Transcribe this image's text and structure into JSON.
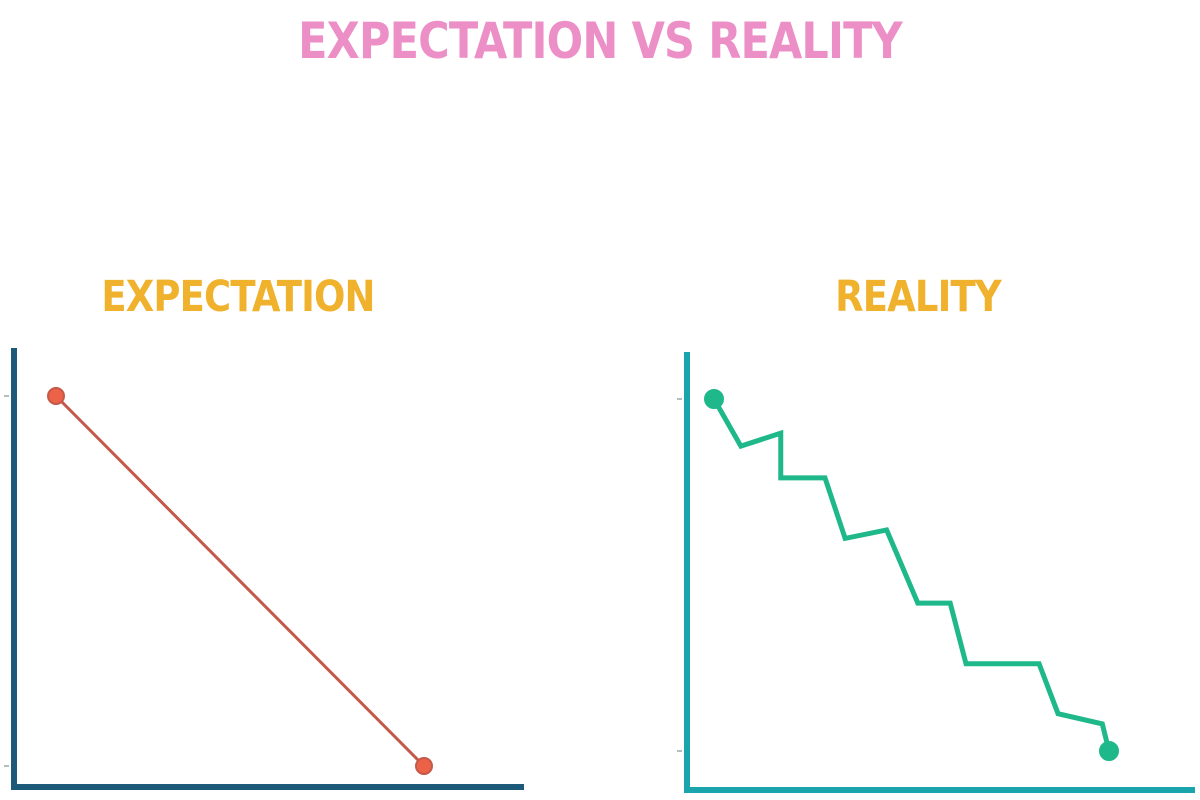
{
  "title": "EXPECTATION VS REALITY",
  "colors": {
    "title": "#ec8fc7",
    "panel_title": "#f0b12c",
    "expectation_axis": "#1d5a7a",
    "expectation_line": "#c4584a",
    "expectation_marker": "#ec6246",
    "reality_axis": "#1aa5ad",
    "reality_line": "#1fb88a"
  },
  "chart_data": [
    {
      "type": "line",
      "title": "EXPECTATION",
      "xlabel": "",
      "ylabel": "",
      "xlim": [
        0,
        10
      ],
      "ylim": [
        0,
        10
      ],
      "grid": false,
      "series": [
        {
          "x": [
            0,
            10
          ],
          "y": [
            10,
            0
          ],
          "markers": "endpoints"
        }
      ]
    },
    {
      "type": "line",
      "title": "REALITY",
      "xlabel": "",
      "ylabel": "",
      "xlim": [
        0,
        10
      ],
      "ylim": [
        0,
        10
      ],
      "grid": false,
      "series": [
        {
          "x": [
            0,
            0.68,
            1.69,
            1.69,
            2.81,
            3.32,
            4.37,
            5.16,
            5.98,
            6.38,
            8.23,
            8.71,
            9.83,
            10
          ],
          "y": [
            10,
            8.66,
            9.03,
            7.76,
            7.76,
            6.04,
            6.28,
            4.2,
            4.2,
            2.48,
            2.48,
            1.06,
            0.77,
            0
          ],
          "markers": "endpoints"
        }
      ]
    }
  ]
}
